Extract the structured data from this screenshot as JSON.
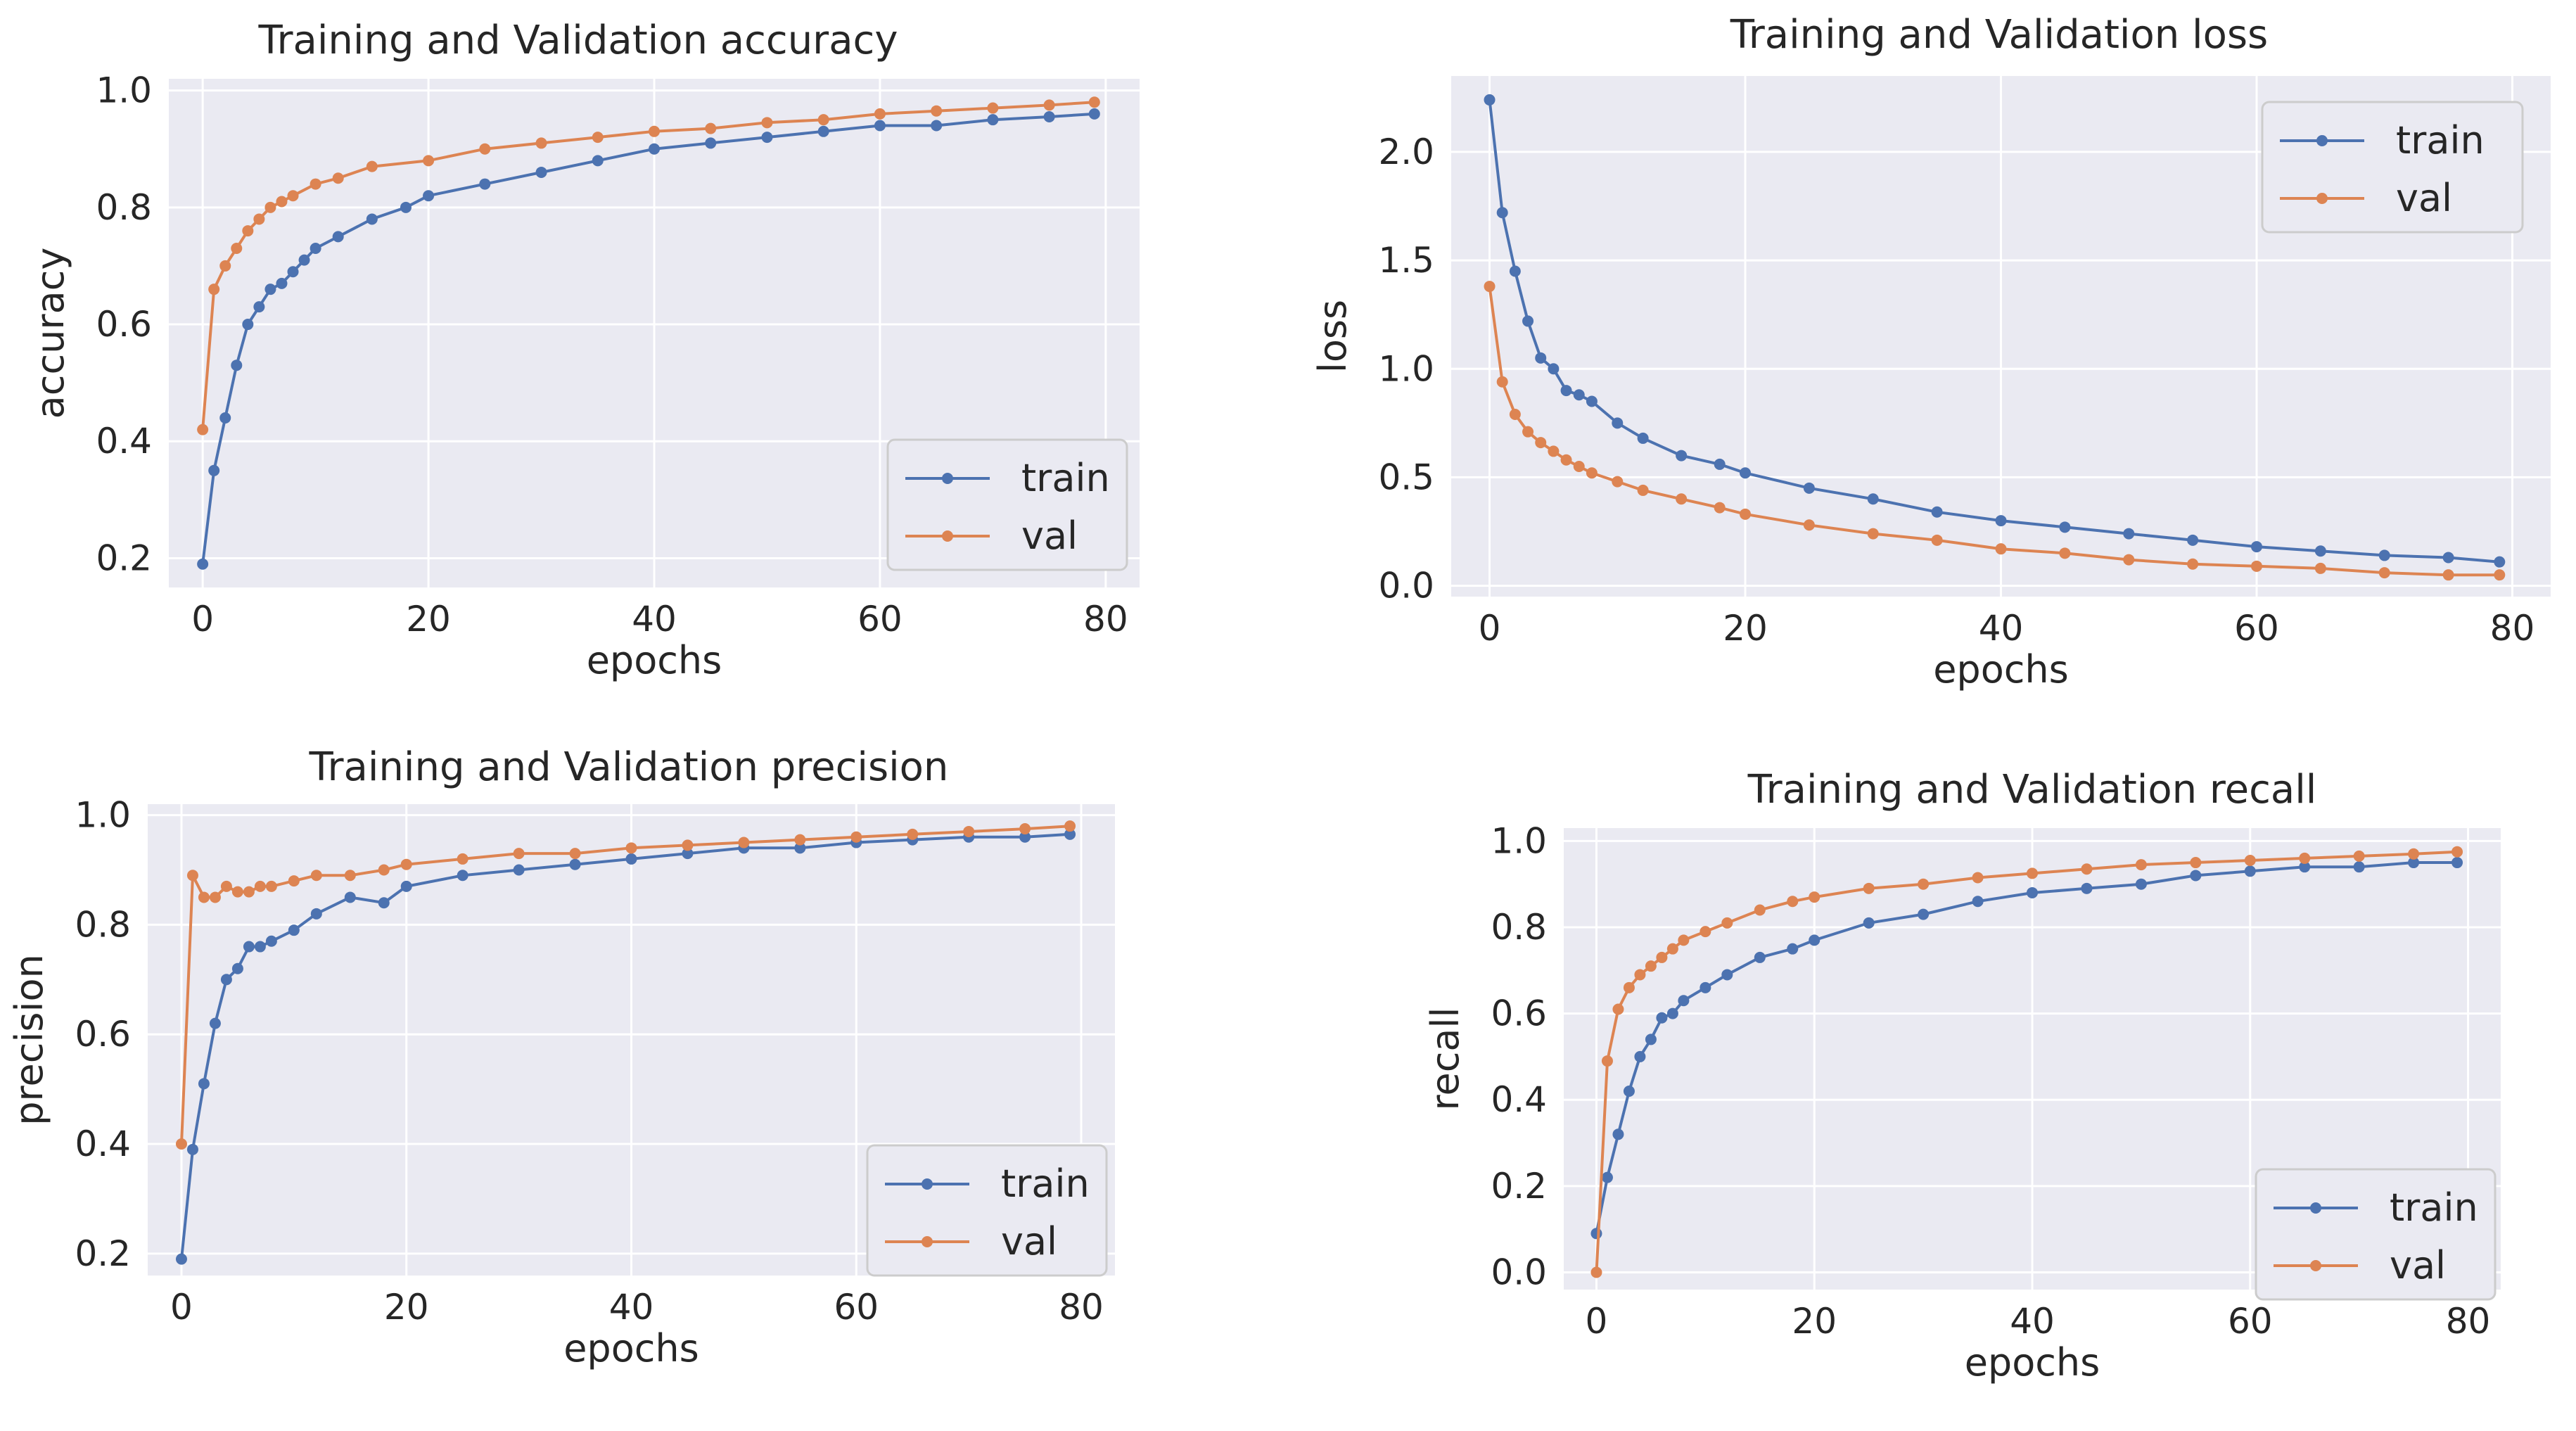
{
  "colors": {
    "train": "#4c72b0",
    "val": "#dd8452",
    "plot_bg": "#eaeaf2",
    "grid": "#ffffff"
  },
  "chart_data": [
    {
      "type": "line",
      "title": "Training and Validation accuracy",
      "xlabel": "epochs",
      "ylabel": "accuracy",
      "xlim": [
        -3,
        83
      ],
      "ylim": [
        0.15,
        1.02
      ],
      "xticks": [
        "0",
        "20",
        "40",
        "60",
        "80"
      ],
      "xtick_values": [
        0,
        20,
        40,
        60,
        80
      ],
      "yticks": [
        "0.2",
        "0.4",
        "0.6",
        "0.8",
        "1.0"
      ],
      "ytick_values": [
        0.2,
        0.4,
        0.6,
        0.8,
        1.0
      ],
      "grid": true,
      "legend_placement": "lower-right",
      "series": [
        {
          "name": "train",
          "color": "#4c72b0",
          "points": [
            [
              0,
              0.19
            ],
            [
              1,
              0.35
            ],
            [
              2,
              0.44
            ],
            [
              3,
              0.53
            ],
            [
              4,
              0.6
            ],
            [
              5,
              0.63
            ],
            [
              6,
              0.66
            ],
            [
              7,
              0.67
            ],
            [
              8,
              0.69
            ],
            [
              9,
              0.71
            ],
            [
              10,
              0.73
            ],
            [
              12,
              0.75
            ],
            [
              15,
              0.78
            ],
            [
              18,
              0.8
            ],
            [
              20,
              0.82
            ],
            [
              25,
              0.84
            ],
            [
              30,
              0.86
            ],
            [
              35,
              0.88
            ],
            [
              40,
              0.9
            ],
            [
              45,
              0.91
            ],
            [
              50,
              0.92
            ],
            [
              55,
              0.93
            ],
            [
              60,
              0.94
            ],
            [
              65,
              0.94
            ],
            [
              70,
              0.95
            ],
            [
              75,
              0.955
            ],
            [
              79,
              0.96
            ]
          ]
        },
        {
          "name": "val",
          "color": "#dd8452",
          "points": [
            [
              0,
              0.42
            ],
            [
              1,
              0.66
            ],
            [
              2,
              0.7
            ],
            [
              3,
              0.73
            ],
            [
              4,
              0.76
            ],
            [
              5,
              0.78
            ],
            [
              6,
              0.8
            ],
            [
              7,
              0.81
            ],
            [
              8,
              0.82
            ],
            [
              10,
              0.84
            ],
            [
              12,
              0.85
            ],
            [
              15,
              0.87
            ],
            [
              20,
              0.88
            ],
            [
              25,
              0.9
            ],
            [
              30,
              0.91
            ],
            [
              35,
              0.92
            ],
            [
              40,
              0.93
            ],
            [
              45,
              0.935
            ],
            [
              50,
              0.945
            ],
            [
              55,
              0.95
            ],
            [
              60,
              0.96
            ],
            [
              65,
              0.965
            ],
            [
              70,
              0.97
            ],
            [
              75,
              0.975
            ],
            [
              79,
              0.98
            ]
          ]
        }
      ]
    },
    {
      "type": "line",
      "title": "Training and Validation loss",
      "xlabel": "epochs",
      "ylabel": "loss",
      "xlim": [
        -3,
        83
      ],
      "ylim": [
        -0.05,
        2.35
      ],
      "xticks": [
        "0",
        "20",
        "40",
        "60",
        "80"
      ],
      "xtick_values": [
        0,
        20,
        40,
        60,
        80
      ],
      "yticks": [
        "0.0",
        "0.5",
        "1.0",
        "1.5",
        "2.0"
      ],
      "ytick_values": [
        0.0,
        0.5,
        1.0,
        1.5,
        2.0
      ],
      "grid": true,
      "legend_placement": "upper-right",
      "series": [
        {
          "name": "train",
          "color": "#4c72b0",
          "points": [
            [
              0,
              2.24
            ],
            [
              1,
              1.72
            ],
            [
              2,
              1.45
            ],
            [
              3,
              1.22
            ],
            [
              4,
              1.05
            ],
            [
              5,
              1.0
            ],
            [
              6,
              0.9
            ],
            [
              7,
              0.88
            ],
            [
              8,
              0.85
            ],
            [
              10,
              0.75
            ],
            [
              12,
              0.68
            ],
            [
              15,
              0.6
            ],
            [
              18,
              0.56
            ],
            [
              20,
              0.52
            ],
            [
              25,
              0.45
            ],
            [
              30,
              0.4
            ],
            [
              35,
              0.34
            ],
            [
              40,
              0.3
            ],
            [
              45,
              0.27
            ],
            [
              50,
              0.24
            ],
            [
              55,
              0.21
            ],
            [
              60,
              0.18
            ],
            [
              65,
              0.16
            ],
            [
              70,
              0.14
            ],
            [
              75,
              0.13
            ],
            [
              79,
              0.11
            ]
          ]
        },
        {
          "name": "val",
          "color": "#dd8452",
          "points": [
            [
              0,
              1.38
            ],
            [
              1,
              0.94
            ],
            [
              2,
              0.79
            ],
            [
              3,
              0.71
            ],
            [
              4,
              0.66
            ],
            [
              5,
              0.62
            ],
            [
              6,
              0.58
            ],
            [
              7,
              0.55
            ],
            [
              8,
              0.52
            ],
            [
              10,
              0.48
            ],
            [
              12,
              0.44
            ],
            [
              15,
              0.4
            ],
            [
              18,
              0.36
            ],
            [
              20,
              0.33
            ],
            [
              25,
              0.28
            ],
            [
              30,
              0.24
            ],
            [
              35,
              0.21
            ],
            [
              40,
              0.17
            ],
            [
              45,
              0.15
            ],
            [
              50,
              0.12
            ],
            [
              55,
              0.1
            ],
            [
              60,
              0.09
            ],
            [
              65,
              0.08
            ],
            [
              70,
              0.06
            ],
            [
              75,
              0.05
            ],
            [
              79,
              0.05
            ]
          ]
        }
      ]
    },
    {
      "type": "line",
      "title": "Training and Validation precision",
      "xlabel": "epochs",
      "ylabel": "precision",
      "xlim": [
        -3,
        83
      ],
      "ylim": [
        0.16,
        1.02
      ],
      "xticks": [
        "0",
        "20",
        "40",
        "60",
        "80"
      ],
      "xtick_values": [
        0,
        20,
        40,
        60,
        80
      ],
      "yticks": [
        "0.2",
        "0.4",
        "0.6",
        "0.8",
        "1.0"
      ],
      "ytick_values": [
        0.2,
        0.4,
        0.6,
        0.8,
        1.0
      ],
      "grid": true,
      "legend_placement": "lower-right",
      "series": [
        {
          "name": "train",
          "color": "#4c72b0",
          "points": [
            [
              0,
              0.19
            ],
            [
              1,
              0.39
            ],
            [
              2,
              0.51
            ],
            [
              3,
              0.62
            ],
            [
              4,
              0.7
            ],
            [
              5,
              0.72
            ],
            [
              6,
              0.76
            ],
            [
              7,
              0.76
            ],
            [
              8,
              0.77
            ],
            [
              10,
              0.79
            ],
            [
              12,
              0.82
            ],
            [
              15,
              0.85
            ],
            [
              18,
              0.84
            ],
            [
              20,
              0.87
            ],
            [
              25,
              0.89
            ],
            [
              30,
              0.9
            ],
            [
              35,
              0.91
            ],
            [
              40,
              0.92
            ],
            [
              45,
              0.93
            ],
            [
              50,
              0.94
            ],
            [
              55,
              0.94
            ],
            [
              60,
              0.95
            ],
            [
              65,
              0.955
            ],
            [
              70,
              0.96
            ],
            [
              75,
              0.96
            ],
            [
              79,
              0.965
            ]
          ]
        },
        {
          "name": "val",
          "color": "#dd8452",
          "points": [
            [
              0,
              0.4
            ],
            [
              1,
              0.89
            ],
            [
              2,
              0.85
            ],
            [
              3,
              0.85
            ],
            [
              4,
              0.87
            ],
            [
              5,
              0.86
            ],
            [
              6,
              0.86
            ],
            [
              7,
              0.87
            ],
            [
              8,
              0.87
            ],
            [
              10,
              0.88
            ],
            [
              12,
              0.89
            ],
            [
              15,
              0.89
            ],
            [
              18,
              0.9
            ],
            [
              20,
              0.91
            ],
            [
              25,
              0.92
            ],
            [
              30,
              0.93
            ],
            [
              35,
              0.93
            ],
            [
              40,
              0.94
            ],
            [
              45,
              0.945
            ],
            [
              50,
              0.95
            ],
            [
              55,
              0.955
            ],
            [
              60,
              0.96
            ],
            [
              65,
              0.965
            ],
            [
              70,
              0.97
            ],
            [
              75,
              0.975
            ],
            [
              79,
              0.98
            ]
          ]
        }
      ]
    },
    {
      "type": "line",
      "title": "Training and Validation recall",
      "xlabel": "epochs",
      "ylabel": "recall",
      "xlim": [
        -3,
        83
      ],
      "ylim": [
        -0.04,
        1.03
      ],
      "xticks": [
        "0",
        "20",
        "40",
        "60",
        "80"
      ],
      "xtick_values": [
        0,
        20,
        40,
        60,
        80
      ],
      "yticks": [
        "0.0",
        "0.2",
        "0.4",
        "0.6",
        "0.8",
        "1.0"
      ],
      "ytick_values": [
        0.0,
        0.2,
        0.4,
        0.6,
        0.8,
        1.0
      ],
      "grid": true,
      "legend_placement": "lower-right",
      "series": [
        {
          "name": "train",
          "color": "#4c72b0",
          "points": [
            [
              0,
              0.09
            ],
            [
              1,
              0.22
            ],
            [
              2,
              0.32
            ],
            [
              3,
              0.42
            ],
            [
              4,
              0.5
            ],
            [
              5,
              0.54
            ],
            [
              6,
              0.59
            ],
            [
              7,
              0.6
            ],
            [
              8,
              0.63
            ],
            [
              10,
              0.66
            ],
            [
              12,
              0.69
            ],
            [
              15,
              0.73
            ],
            [
              18,
              0.75
            ],
            [
              20,
              0.77
            ],
            [
              25,
              0.81
            ],
            [
              30,
              0.83
            ],
            [
              35,
              0.86
            ],
            [
              40,
              0.88
            ],
            [
              45,
              0.89
            ],
            [
              50,
              0.9
            ],
            [
              55,
              0.92
            ],
            [
              60,
              0.93
            ],
            [
              65,
              0.94
            ],
            [
              70,
              0.94
            ],
            [
              75,
              0.95
            ],
            [
              79,
              0.95
            ]
          ]
        },
        {
          "name": "val",
          "color": "#dd8452",
          "points": [
            [
              0,
              0.0
            ],
            [
              1,
              0.49
            ],
            [
              2,
              0.61
            ],
            [
              3,
              0.66
            ],
            [
              4,
              0.69
            ],
            [
              5,
              0.71
            ],
            [
              6,
              0.73
            ],
            [
              7,
              0.75
            ],
            [
              8,
              0.77
            ],
            [
              10,
              0.79
            ],
            [
              12,
              0.81
            ],
            [
              15,
              0.84
            ],
            [
              18,
              0.86
            ],
            [
              20,
              0.87
            ],
            [
              25,
              0.89
            ],
            [
              30,
              0.9
            ],
            [
              35,
              0.915
            ],
            [
              40,
              0.925
            ],
            [
              45,
              0.935
            ],
            [
              50,
              0.945
            ],
            [
              55,
              0.95
            ],
            [
              60,
              0.955
            ],
            [
              65,
              0.96
            ],
            [
              70,
              0.965
            ],
            [
              75,
              0.97
            ],
            [
              79,
              0.975
            ]
          ]
        }
      ]
    }
  ]
}
